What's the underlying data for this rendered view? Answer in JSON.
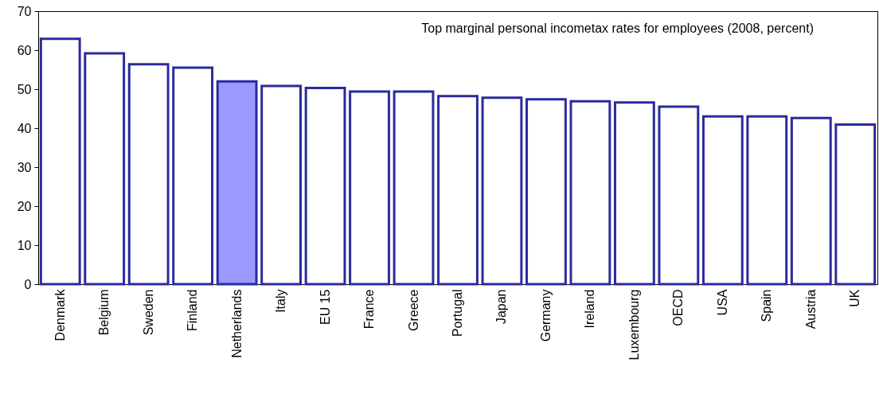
{
  "chart_data": {
    "type": "bar",
    "title": "Top marginal personal incometax rates for employees (2008, percent)",
    "categories": [
      "Denmark",
      "Belgium",
      "Sweden",
      "Finland",
      "Netherlands",
      "Italy",
      "EU 15",
      "France",
      "Greece",
      "Portugal",
      "Japan",
      "Germany",
      "Ireland",
      "Luxembourg",
      "OECD",
      "USA",
      "Spain",
      "Austria",
      "UK"
    ],
    "values": [
      62.9,
      59.2,
      56.4,
      55.5,
      52.0,
      50.8,
      50.3,
      49.4,
      49.4,
      48.2,
      47.8,
      47.4,
      46.9,
      46.6,
      45.5,
      43.0,
      43.0,
      42.6,
      40.9
    ],
    "colors": [
      "#ffffff",
      "#ffffff",
      "#ffffff",
      "#ffffff",
      "#9999ff",
      "#ffffff",
      "#ffffff",
      "#ffffff",
      "#ffffff",
      "#ffffff",
      "#ffffff",
      "#ffffff",
      "#ffffff",
      "#ffffff",
      "#ffffff",
      "#ffffff",
      "#ffffff",
      "#ffffff",
      "#ffffff"
    ],
    "ylim": [
      0,
      70
    ],
    "yticks": [
      0,
      10,
      20,
      30,
      40,
      50,
      60,
      70
    ],
    "grid": false
  }
}
